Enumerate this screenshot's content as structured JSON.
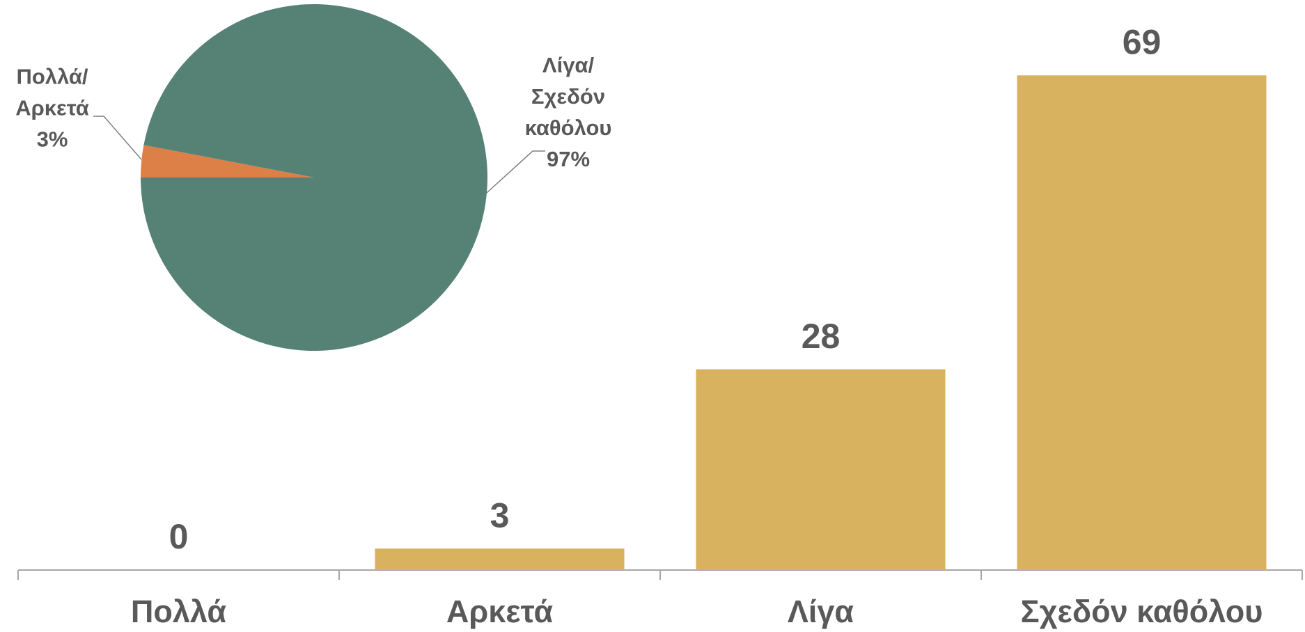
{
  "chart_data": [
    {
      "type": "bar",
      "categories": [
        "Πολλά",
        "Αρκετά",
        "Λίγα",
        "Σχεδόν καθόλου"
      ],
      "values": [
        0,
        3,
        28,
        69
      ],
      "color": "#D8B25E"
    },
    {
      "type": "pie",
      "categories": [
        "Πολλά/\nΑρκετά",
        "Λίγα/\nΣχεδόν\nκαθόλου"
      ],
      "values": [
        3,
        97
      ],
      "value_labels": [
        "3%",
        "97%"
      ],
      "colors": [
        "#DD8047",
        "#568276"
      ]
    }
  ]
}
